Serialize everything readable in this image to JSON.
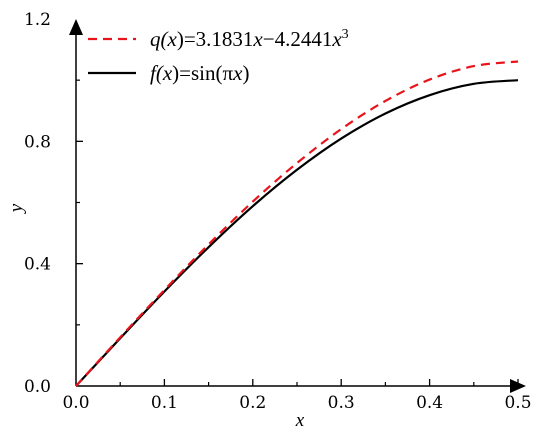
{
  "chart_data": {
    "type": "line",
    "xlabel": "x",
    "ylabel": "y",
    "xlim": [
      0,
      0.5
    ],
    "ylim": [
      0,
      1.2
    ],
    "x_ticks": [
      {
        "value": 0.0,
        "label": "0.0"
      },
      {
        "value": 0.1,
        "label": "0.1"
      },
      {
        "value": 0.2,
        "label": "0.2"
      },
      {
        "value": 0.3,
        "label": "0.3"
      },
      {
        "value": 0.4,
        "label": "0.4"
      },
      {
        "value": 0.5,
        "label": "0.5"
      }
    ],
    "y_ticks": [
      {
        "value": 0.0,
        "label": "0.0"
      },
      {
        "value": 0.4,
        "label": "0.4"
      },
      {
        "value": 0.8,
        "label": "0.8"
      },
      {
        "value": 1.2,
        "label": "1.2"
      }
    ],
    "grid": false,
    "legend_position": "top-left",
    "series": [
      {
        "name": "q(x)=3.1831x−4.2441x³",
        "legend": {
          "p1": "q(",
          "p2": "x",
          "p3": ")=3.1831",
          "p4": "x",
          "p5": "−4.2441",
          "p6": "x",
          "sup": "3"
        },
        "style": "dashed",
        "color": "#e8141c",
        "x": [
          0.0,
          0.05,
          0.1,
          0.15,
          0.2,
          0.25,
          0.3,
          0.35,
          0.4,
          0.45,
          0.5
        ],
        "y": [
          0.0,
          0.159,
          0.314,
          0.463,
          0.603,
          0.729,
          0.84,
          0.932,
          1.002,
          1.046,
          1.061
        ]
      },
      {
        "name": "f(x)=sin(πx)",
        "legend": {
          "p1": "f(",
          "p2": "x",
          "p3": ")=sin(π",
          "p4": "x",
          "p5": ")"
        },
        "style": "solid",
        "color": "#000000",
        "x": [
          0.0,
          0.05,
          0.1,
          0.15,
          0.2,
          0.25,
          0.3,
          0.35,
          0.4,
          0.45,
          0.5
        ],
        "y": [
          0.0,
          0.156,
          0.309,
          0.454,
          0.588,
          0.707,
          0.809,
          0.891,
          0.951,
          0.988,
          1.0
        ]
      }
    ]
  }
}
